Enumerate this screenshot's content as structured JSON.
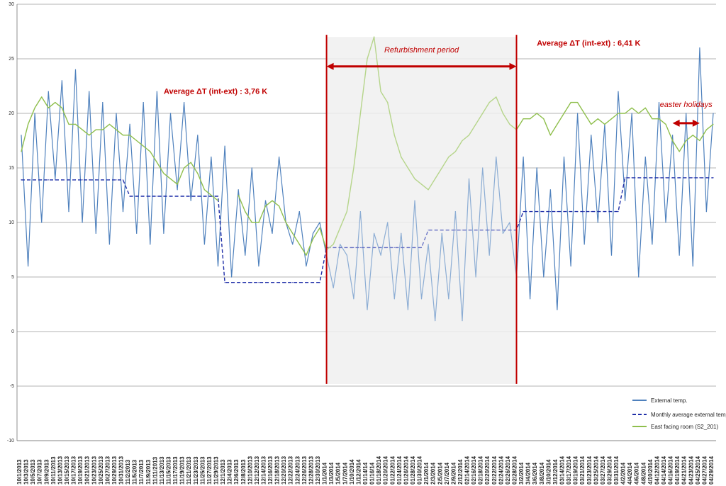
{
  "chart_data": {
    "type": "line",
    "ylim": [
      -10,
      30
    ],
    "yticks": [
      -10,
      -5,
      0,
      5,
      10,
      15,
      20,
      25,
      30
    ],
    "grid": true,
    "legend_position": "bottom-right",
    "colors": {
      "external": "#4f81bd",
      "monthly": "#1f2ea8",
      "east": "#8fbf4d",
      "annotation": "#c00000"
    },
    "x_dates": [
      "10/1/2013",
      "10/3/2013",
      "10/5/2013",
      "10/7/2013",
      "10/9/2013",
      "10/11/2013",
      "10/13/2013",
      "10/15/2013",
      "10/17/2013",
      "10/19/2013",
      "10/21/2013",
      "10/23/2013",
      "10/25/2013",
      "10/27/2013",
      "10/29/2013",
      "10/31/2013",
      "11/2/2013",
      "11/5/2013",
      "11/7/2013",
      "11/9/2013",
      "11/11/2013",
      "11/13/2013",
      "11/15/2013",
      "11/17/2013",
      "11/19/2013",
      "11/21/2013",
      "11/23/2013",
      "11/25/2013",
      "11/27/2013",
      "11/29/2013",
      "12/1/2013",
      "12/4/2013",
      "12/6/2013",
      "12/8/2013",
      "12/10/2013",
      "12/12/2013",
      "12/14/2013",
      "12/16/2013",
      "12/18/2013",
      "12/20/2013",
      "12/22/2013",
      "12/24/2013",
      "12/26/2013",
      "12/28/2013",
      "12/30/2013",
      "1/1/2014",
      "1/3/2014",
      "1/5/2014",
      "1/7/2014",
      "1/10/2014",
      "1/12/2014",
      "01/14/14",
      "01/16/14",
      "01/18/2014",
      "01/20/2014",
      "01/22/2014",
      "01/24/2014",
      "01/26/2014",
      "01/28/2014",
      "01/30/2014",
      "2/1/2014",
      "2/3/2014",
      "2/5/2014",
      "2/7/2014",
      "2/9/2014",
      "2/12/2014",
      "02/14/2014",
      "02/16/2014",
      "02/18/2014",
      "02/20/2014",
      "02/22/2014",
      "02/24/2014",
      "02/26/2014",
      "02/28/2014",
      "3/2/2014",
      "3/4/2014",
      "3/6/2014",
      "3/8/2014",
      "3/10/2014",
      "3/12/2014",
      "03/14/2014",
      "03/17/2014",
      "03/19/2014",
      "03/21/2014",
      "03/23/2014",
      "03/25/2014",
      "03/27/2014",
      "03/29/2014",
      "03/31/2014",
      "4/2/2014",
      "4/4/2014",
      "4/6/2014",
      "4/8/2014",
      "4/10/2014",
      "04/12/2014",
      "04/14/2014",
      "04/16/2014",
      "04/19/2014",
      "04/21/2014",
      "04/23/2014",
      "04/25/2014",
      "04/27/2014",
      "04/29/2014"
    ],
    "series": [
      {
        "name": "External temp.",
        "values": [
          18,
          6,
          20,
          10,
          22,
          14,
          23,
          11,
          24,
          10,
          22,
          9,
          21,
          8,
          20,
          11,
          19,
          9,
          21,
          8,
          22,
          9,
          20,
          13,
          21,
          12,
          18,
          8,
          16,
          6,
          17,
          5,
          13,
          7,
          15,
          6,
          12,
          9,
          16,
          10,
          8,
          11,
          6,
          9,
          10,
          7,
          4,
          8,
          7,
          3,
          11,
          2,
          9,
          7,
          10,
          3,
          9,
          2,
          12,
          3,
          8,
          1,
          9,
          3,
          11,
          1,
          14,
          5,
          15,
          7,
          16,
          9,
          10,
          5,
          16,
          3,
          15,
          5,
          13,
          2,
          16,
          6,
          20,
          8,
          18,
          10,
          19,
          7,
          22,
          12,
          20,
          5,
          16,
          8,
          21,
          10,
          18,
          7,
          20,
          6,
          26,
          11,
          20
        ]
      },
      {
        "name": "Monthly average external temp.",
        "values": [
          13.9,
          13.9,
          13.9,
          13.9,
          13.9,
          13.9,
          13.9,
          13.9,
          13.9,
          13.9,
          13.9,
          13.9,
          13.9,
          13.9,
          13.9,
          13.9,
          12.4,
          12.4,
          12.4,
          12.4,
          12.4,
          12.4,
          12.4,
          12.4,
          12.4,
          12.4,
          12.4,
          12.4,
          12.4,
          12.4,
          4.5,
          4.5,
          4.5,
          4.5,
          4.5,
          4.5,
          4.5,
          4.5,
          4.5,
          4.5,
          4.5,
          4.5,
          4.5,
          4.5,
          4.5,
          7.7,
          7.7,
          7.7,
          7.7,
          7.7,
          7.7,
          7.7,
          7.7,
          7.7,
          7.7,
          7.7,
          7.7,
          7.7,
          7.7,
          7.7,
          9.3,
          9.3,
          9.3,
          9.3,
          9.3,
          9.3,
          9.3,
          9.3,
          9.3,
          9.3,
          9.3,
          9.3,
          9.3,
          9.3,
          11.0,
          11.0,
          11.0,
          11.0,
          11.0,
          11.0,
          11.0,
          11.0,
          11.0,
          11.0,
          11.0,
          11.0,
          11.0,
          11.0,
          11.0,
          14.1,
          14.1,
          14.1,
          14.1,
          14.1,
          14.1,
          14.1,
          14.1,
          14.1,
          14.1,
          14.1,
          14.1,
          14.1,
          14.1
        ]
      },
      {
        "name": "East facing room (S2_201)",
        "values": [
          16.5,
          19,
          20.5,
          21.5,
          20.5,
          21,
          20.5,
          19,
          19,
          18.5,
          18,
          18.5,
          18.5,
          19,
          18.5,
          18,
          18,
          17.5,
          17,
          16.5,
          15.5,
          14.5,
          14,
          13.5,
          15,
          15.5,
          14.5,
          13,
          12.5,
          12,
          null,
          null,
          12.5,
          11,
          10,
          10,
          11.5,
          12,
          11.5,
          10,
          9,
          8,
          7,
          8.5,
          9.5,
          7.5,
          8,
          9.5,
          11,
          15,
          20,
          25,
          27,
          22,
          21,
          18,
          16,
          15,
          14,
          13.5,
          13,
          14,
          15,
          16,
          16.5,
          17.5,
          18,
          19,
          20,
          21,
          21.5,
          20,
          19,
          18.5,
          19.5,
          19.5,
          20,
          19.5,
          18,
          19,
          20,
          21,
          21,
          20,
          19,
          19.5,
          19,
          19.5,
          20,
          20,
          20.5,
          20,
          20.5,
          19.5,
          19.5,
          19,
          17.5,
          16.5,
          17.5,
          18,
          17.5,
          18.5,
          19
        ]
      }
    ],
    "annotations": {
      "left_avg": "Average ΔT  (int-ext) : 3,76 K",
      "right_avg": "Average ΔT  (int-ext) : 6,41 K",
      "refurb": "Refurbishment period",
      "easter": "easter holidays"
    }
  }
}
